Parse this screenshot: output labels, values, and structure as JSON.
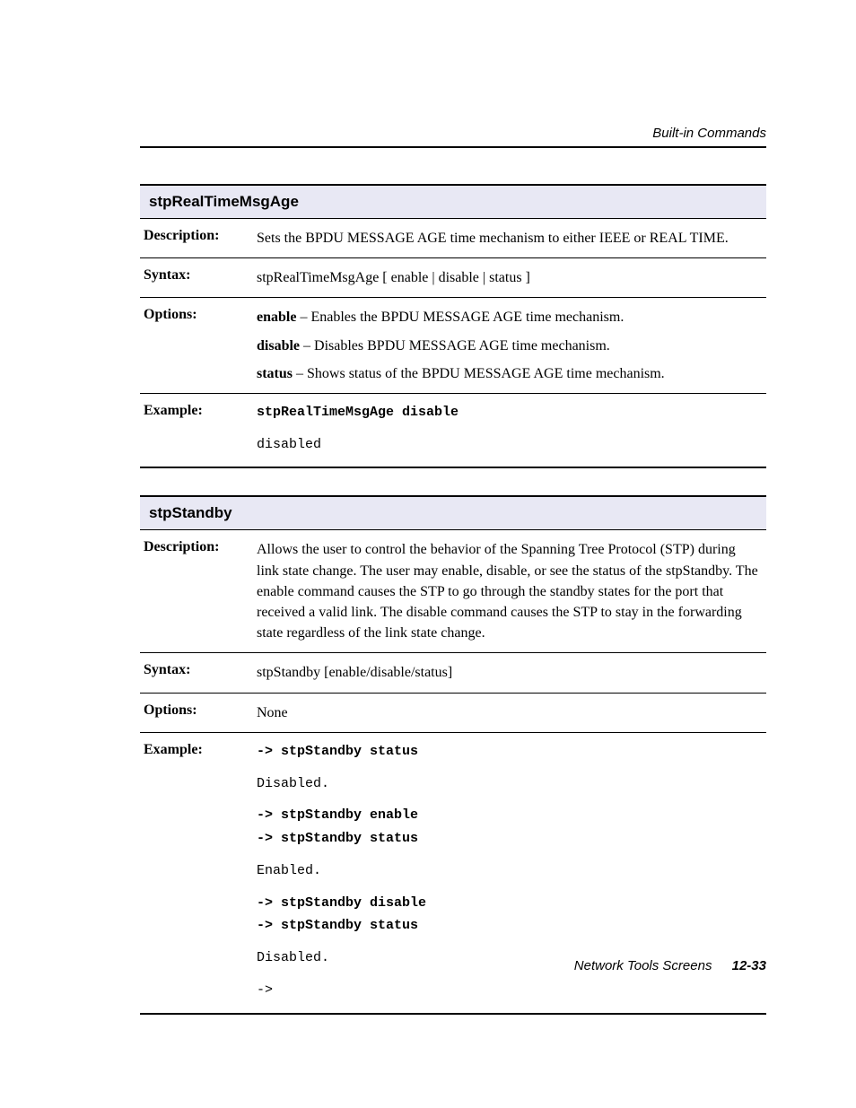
{
  "header": {
    "section": "Built-in Commands"
  },
  "commands": [
    {
      "name": "stpRealTimeMsgAge",
      "rows": {
        "description_label": "Description:",
        "description": "Sets the BPDU MESSAGE AGE time mechanism to either IEEE or REAL TIME.",
        "syntax_label": "Syntax:",
        "syntax": "stpRealTimeMsgAge [ enable | disable | status ]",
        "options_label": "Options:",
        "options": [
          {
            "term": "enable",
            "desc": " – Enables the BPDU MESSAGE AGE time mechanism."
          },
          {
            "term": "disable",
            "desc": " – Disables BPDU MESSAGE AGE time mechanism."
          },
          {
            "term": "status",
            "desc": " – Shows status of the BPDU MESSAGE AGE time mechanism."
          }
        ],
        "example_label": "Example:",
        "example": {
          "cmd": "stpRealTimeMsgAge disable",
          "out": "disabled"
        }
      }
    },
    {
      "name": "stpStandby",
      "rows": {
        "description_label": "Description:",
        "description": "Allows the user to control the behavior of the Spanning Tree Protocol (STP) during link state change. The user may enable, disable, or see the status of the stpStandby. The enable command causes the STP to go through the standby states for the port that received a valid link. The disable command causes the STP to stay in the forwarding state regardless of the link state change.",
        "syntax_label": "Syntax:",
        "syntax": "stpStandby [enable/disable/status]",
        "options_label": "Options:",
        "options_text": "None",
        "example_label": "Example:",
        "example_lines": [
          {
            "t": "cmd",
            "v": "-> stpStandby status"
          },
          {
            "t": "gap"
          },
          {
            "t": "out",
            "v": "Disabled."
          },
          {
            "t": "gap"
          },
          {
            "t": "cmd",
            "v": "-> stpStandby enable"
          },
          {
            "t": "cmd",
            "v": "-> stpStandby status"
          },
          {
            "t": "gap"
          },
          {
            "t": "out",
            "v": "Enabled."
          },
          {
            "t": "gap"
          },
          {
            "t": "cmd",
            "v": "-> stpStandby disable"
          },
          {
            "t": "cmd",
            "v": "-> stpStandby status"
          },
          {
            "t": "gap"
          },
          {
            "t": "out",
            "v": "Disabled."
          },
          {
            "t": "gap"
          },
          {
            "t": "out",
            "v": "->"
          }
        ]
      }
    }
  ],
  "footer": {
    "title": "Network Tools Screens",
    "page": "12-33"
  }
}
